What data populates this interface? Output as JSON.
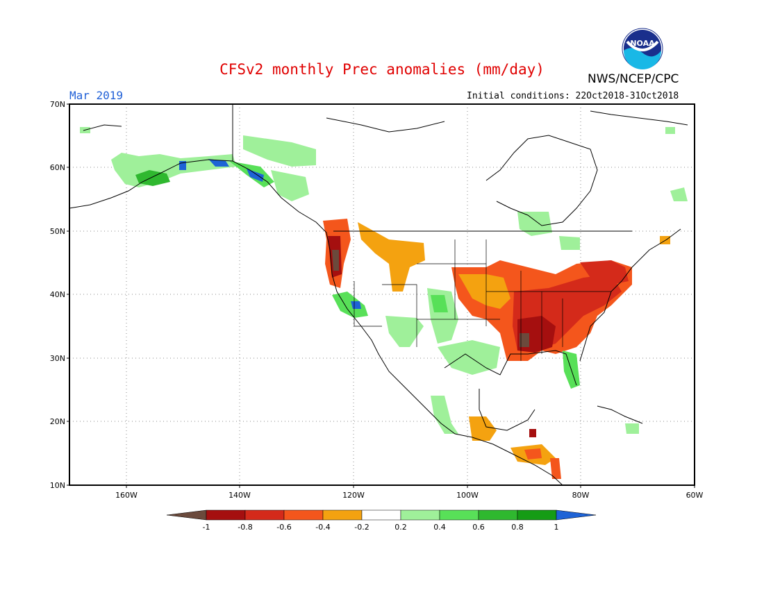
{
  "header": {
    "title": "CFSv2 monthly Prec anomalies (mm/day)",
    "agency": "NWS/NCEP/CPC",
    "logo_text": "NOAA",
    "month": "Mar 2019",
    "initial_conditions": "Initial conditions: 22Oct2018-31Oct2018"
  },
  "axes": {
    "lat_labels": [
      "70N",
      "60N",
      "50N",
      "40N",
      "30N",
      "20N",
      "10N"
    ],
    "lon_labels": [
      "160W",
      "140W",
      "120W",
      "100W",
      "80W",
      "60W"
    ]
  },
  "colorbar": {
    "labels": [
      "-1",
      "-0.8",
      "-0.6",
      "-0.4",
      "-0.2",
      "0.2",
      "0.4",
      "0.6",
      "0.8",
      "1"
    ],
    "colors": [
      "#6b4a3c",
      "#a50f0f",
      "#d42a1a",
      "#f4561c",
      "#f4a210",
      "#ffffff",
      "#9ff09a",
      "#58e058",
      "#2fb82f",
      "#159c15",
      "#1e63d6"
    ]
  },
  "colors": {
    "title": "#e00000",
    "month": "#1f5fd6",
    "gridline": "#777777"
  }
}
